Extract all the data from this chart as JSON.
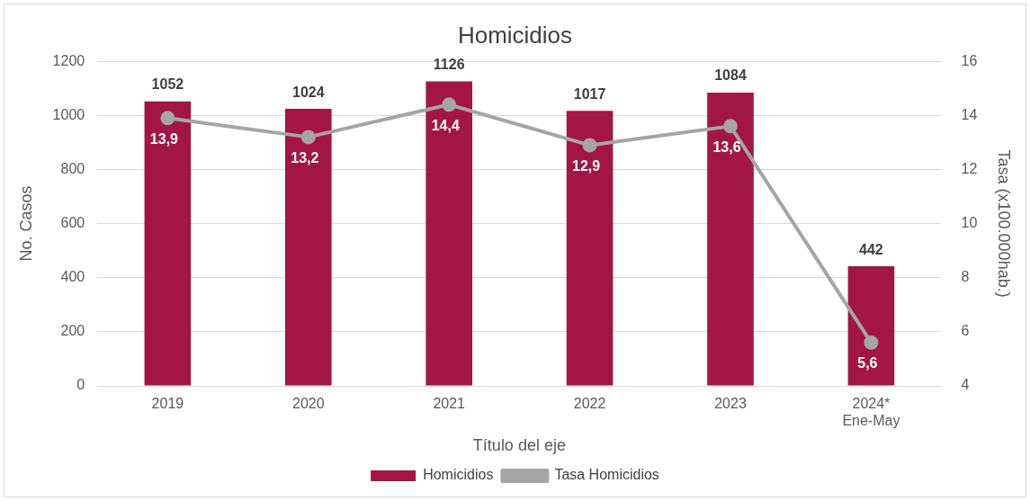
{
  "chart_data": {
    "type": "bar",
    "title": "Homicidios",
    "xlabel": "Título del eje",
    "ylabel": "No. Casos",
    "y2label": "Tasa (x100.000hab.)",
    "categories": [
      "2019",
      "2020",
      "2021",
      "2022",
      "2023",
      "2024*\nEne-May"
    ],
    "series": [
      {
        "name": "Homicidios",
        "color": "#a31545",
        "values": [
          1052,
          1024,
          1126,
          1017,
          1084,
          442
        ],
        "value_labels": [
          "1052",
          "1024",
          "1126",
          "1017",
          "1084",
          "442"
        ]
      },
      {
        "name": "Tasa Homicidios",
        "type": "line",
        "axis": "y2",
        "color": "#a5a5a5",
        "values": [
          13.9,
          13.2,
          14.4,
          12.9,
          13.6,
          5.6
        ],
        "value_labels": [
          "13,9",
          "13,2",
          "14,4",
          "12,9",
          "13,6",
          "5,6"
        ]
      }
    ],
    "ylim": [
      0,
      1200
    ],
    "yticks": [
      0,
      200,
      400,
      600,
      800,
      1000,
      1200
    ],
    "y2lim": [
      4,
      16
    ],
    "y2ticks": [
      4,
      6,
      8,
      10,
      12,
      14,
      16
    ],
    "grid": "y",
    "legend": "bottom",
    "marker": "circle",
    "line_style": "solid"
  }
}
